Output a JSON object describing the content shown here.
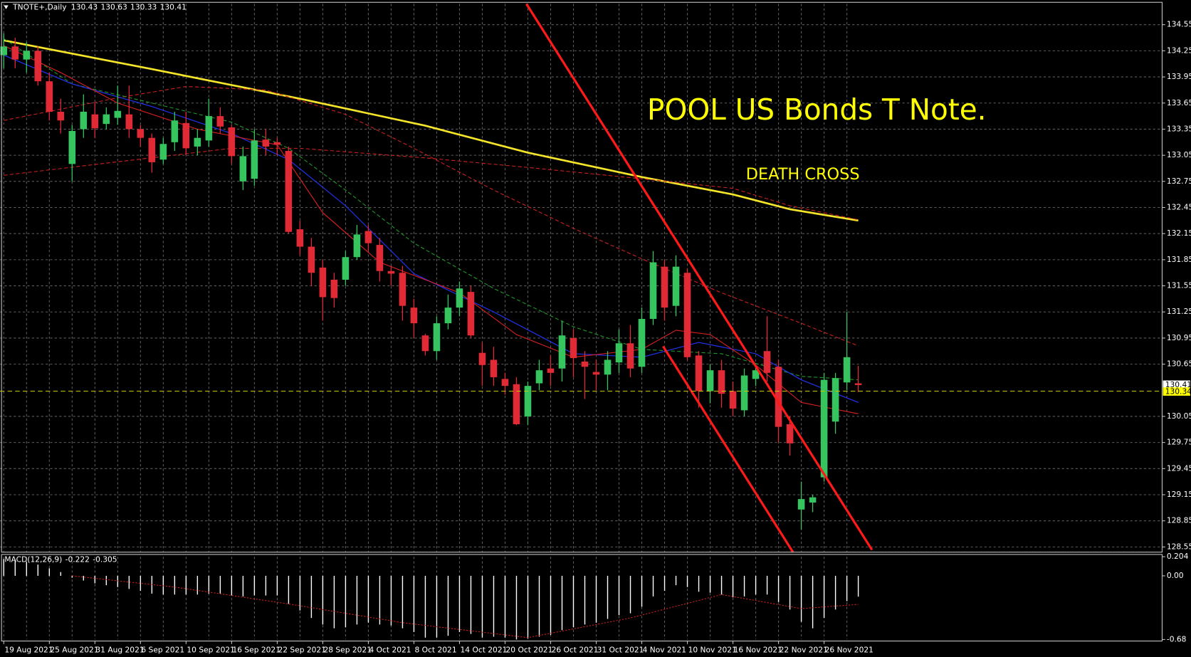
{
  "chart_data": [
    {
      "type": "candlestick",
      "symbol_label": "TNOTE+,Daily",
      "title": "POOL US Bonds T Note.",
      "annotation": "DEATH CROSS",
      "up_color": "#35c45e",
      "down_color": "#e02a36",
      "xlim": [
        -0.33,
        101.67
      ],
      "xticks": [
        {
          "value": 0,
          "label": "19 Aug 2021"
        },
        {
          "value": 4,
          "label": "25 Aug 2021"
        },
        {
          "value": 8,
          "label": "31 Aug 2021"
        },
        {
          "value": 12,
          "label": "6 Sep 2021"
        },
        {
          "value": 16,
          "label": "10 Sep 2021"
        },
        {
          "value": 20,
          "label": "16 Sep 2021"
        },
        {
          "value": 24,
          "label": "22 Sep 2021"
        },
        {
          "value": 28,
          "label": "28 Sep 2021"
        },
        {
          "value": 32,
          "label": "4 Oct 2021"
        },
        {
          "value": 36,
          "label": "8 Oct 2021"
        },
        {
          "value": 40,
          "label": "14 Oct 2021"
        },
        {
          "value": 44,
          "label": "20 Oct 2021"
        },
        {
          "value": 48,
          "label": "26 Oct 2021"
        },
        {
          "value": 52,
          "label": "31 Oct 2021"
        },
        {
          "value": 56,
          "label": "4 Nov 2021"
        },
        {
          "value": 60,
          "label": "10 Nov 2021"
        },
        {
          "value": 64,
          "label": "16 Nov 2021"
        },
        {
          "value": 68,
          "label": "22 Nov 2021"
        },
        {
          "value": 72,
          "label": "26 Nov 2021"
        }
      ],
      "ylim": [
        128.49,
        134.79
      ],
      "yticks": [
        134.55,
        134.25,
        133.95,
        133.65,
        133.35,
        133.05,
        132.75,
        132.45,
        132.15,
        131.85,
        131.55,
        131.25,
        130.95,
        130.65,
        130.05,
        129.75,
        129.45,
        129.15,
        128.85,
        128.55
      ],
      "grid": true,
      "bid_line": 130.34,
      "open": [
        134.2,
        134.3,
        134.15,
        134.25,
        133.9,
        133.55,
        132.95,
        133.35,
        133.52,
        133.41,
        133.48,
        133.52,
        133.35,
        133.25,
        133.0,
        133.2,
        133.42,
        133.15,
        133.22,
        133.5,
        133.37,
        132.75,
        132.78,
        133.23,
        133.2,
        133.1,
        132.2,
        132.0,
        131.76,
        131.62,
        131.62,
        131.88,
        132.18,
        132.02,
        131.72,
        131.7,
        131.3,
        130.98,
        130.8,
        131.12,
        131.3,
        131.48,
        130.78,
        130.7,
        130.48,
        130.42,
        130.05,
        130.43,
        130.6,
        130.6,
        130.95,
        130.68,
        130.56,
        130.53,
        130.67,
        130.89,
        130.62,
        131.17,
        131.77,
        131.32,
        131.7,
        130.75,
        130.34,
        130.58,
        130.34,
        130.12,
        130.48,
        130.8,
        130.62,
        129.96,
        128.98,
        129.06,
        129.35,
        129.99,
        130.44,
        130.43
      ],
      "high": [
        134.45,
        134.4,
        134.35,
        134.3,
        134.0,
        133.7,
        133.4,
        133.75,
        133.65,
        133.6,
        133.85,
        133.85,
        133.4,
        133.3,
        133.25,
        133.55,
        133.55,
        133.35,
        133.7,
        133.6,
        133.4,
        133.15,
        133.35,
        133.35,
        133.25,
        133.15,
        132.3,
        132.1,
        131.85,
        131.7,
        131.95,
        132.25,
        132.25,
        132.1,
        131.78,
        131.78,
        131.4,
        131.0,
        131.2,
        131.45,
        131.6,
        131.55,
        130.9,
        130.85,
        130.55,
        130.5,
        130.45,
        130.7,
        130.75,
        131.15,
        131.05,
        130.8,
        130.7,
        130.8,
        131.05,
        131.1,
        131.3,
        131.95,
        131.85,
        131.9,
        131.75,
        130.8,
        130.65,
        130.7,
        130.45,
        130.6,
        130.65,
        131.2,
        130.7,
        130.05,
        129.3,
        129.15,
        130.55,
        130.55,
        131.25,
        130.63
      ],
      "low": [
        134.05,
        134.05,
        134.0,
        133.85,
        133.45,
        133.3,
        132.75,
        133.25,
        133.25,
        133.35,
        133.4,
        133.25,
        133.15,
        132.85,
        132.95,
        133.1,
        133.05,
        133.05,
        133.15,
        133.3,
        132.95,
        132.65,
        132.7,
        133.05,
        133.05,
        132.15,
        131.9,
        131.55,
        131.15,
        131.3,
        131.55,
        131.85,
        131.95,
        131.6,
        131.55,
        131.15,
        130.95,
        130.75,
        130.7,
        131.05,
        131.2,
        130.95,
        130.4,
        130.4,
        130.3,
        129.95,
        129.95,
        130.35,
        130.4,
        130.45,
        130.5,
        130.25,
        130.35,
        130.35,
        130.55,
        130.5,
        130.55,
        131.1,
        131.15,
        131.2,
        130.7,
        130.15,
        130.2,
        130.15,
        130.05,
        130.05,
        130.4,
        130.45,
        129.75,
        129.6,
        128.75,
        128.95,
        129.3,
        129.85,
        130.35,
        130.33
      ],
      "close": [
        134.3,
        134.15,
        134.25,
        133.9,
        133.55,
        133.45,
        133.33,
        133.55,
        133.36,
        133.52,
        133.56,
        133.35,
        133.25,
        132.97,
        133.18,
        133.45,
        133.13,
        133.25,
        133.5,
        133.38,
        133.04,
        133.04,
        133.22,
        133.15,
        133.17,
        132.17,
        132.0,
        131.7,
        131.42,
        131.41,
        131.88,
        132.14,
        132.04,
        131.72,
        131.69,
        131.32,
        131.12,
        130.8,
        131.12,
        131.3,
        131.52,
        130.98,
        130.64,
        130.5,
        130.4,
        129.96,
        130.4,
        130.58,
        130.55,
        130.98,
        130.72,
        130.62,
        130.53,
        130.7,
        130.89,
        130.6,
        131.17,
        131.82,
        131.3,
        131.77,
        130.73,
        130.34,
        130.58,
        130.31,
        130.14,
        130.52,
        130.58,
        130.55,
        129.93,
        129.74,
        129.1,
        129.12,
        130.47,
        130.49,
        130.73,
        130.41
      ],
      "overlays": [
        {
          "color": "#f5e52a",
          "width": 2.5,
          "dash": false,
          "x": [
            0,
            13,
            26,
            37,
            46,
            56,
            64,
            69,
            75
          ],
          "values": [
            134.37,
            134.04,
            133.7,
            133.39,
            133.08,
            132.8,
            132.6,
            132.43,
            132.3
          ]
        },
        {
          "color": "#d02020",
          "width": 1,
          "dash": true,
          "x": [
            0,
            20,
            26,
            37,
            46,
            56,
            64,
            69,
            75
          ],
          "values": [
            132.82,
            133.13,
            133.13,
            133.02,
            132.91,
            132.78,
            132.67,
            132.47,
            132.31
          ]
        },
        {
          "color": "#d02020",
          "width": 1,
          "dash": true,
          "x": [
            0,
            10,
            16,
            23,
            30,
            36,
            43,
            50,
            56,
            63,
            70,
            75
          ],
          "values": [
            133.45,
            133.71,
            133.84,
            133.8,
            133.52,
            133.13,
            132.65,
            132.21,
            131.86,
            131.47,
            131.12,
            130.86
          ]
        },
        {
          "color": "#1f9a2a",
          "width": 1,
          "dash": true,
          "x": [
            0,
            6,
            13,
            20,
            25,
            30,
            36,
            43,
            50,
            56,
            63,
            70,
            75
          ],
          "values": [
            134.39,
            133.87,
            133.65,
            133.43,
            133.13,
            132.65,
            132.04,
            131.52,
            131.08,
            130.82,
            130.77,
            130.51,
            130.47
          ]
        },
        {
          "color": "#2030e0",
          "width": 1.2,
          "dash": false,
          "x": [
            0,
            6,
            13,
            20,
            25,
            30,
            36,
            43,
            50,
            56,
            61,
            66,
            70,
            75
          ],
          "values": [
            134.2,
            133.87,
            133.61,
            133.3,
            133.0,
            132.47,
            131.69,
            131.25,
            130.77,
            130.73,
            130.9,
            130.77,
            130.47,
            130.21
          ]
        },
        {
          "color": "#e02020",
          "width": 1,
          "dash": false,
          "x": [
            0,
            5,
            10,
            17,
            24,
            28,
            33,
            40,
            45,
            50,
            56,
            59,
            62,
            66,
            70,
            75
          ],
          "values": [
            134.31,
            134.0,
            133.65,
            133.35,
            133.17,
            132.39,
            131.82,
            131.47,
            130.99,
            130.73,
            130.82,
            131.04,
            130.99,
            130.64,
            130.21,
            130.08
          ]
        }
      ]
    },
    {
      "type": "macd",
      "title": "MACD(12,26,9)",
      "color": "#ffffff",
      "xlim": [
        -0.33,
        101.67
      ],
      "ylim": [
        -0.68,
        0.204
      ],
      "yticks": [
        0.204,
        {
          "value": 0,
          "label": "0.00"
        },
        -0.68
      ],
      "values": [
        0.18,
        0.17,
        0.15,
        0.12,
        0.08,
        0.04,
        -0.02,
        -0.05,
        -0.08,
        -0.1,
        -0.12,
        -0.14,
        -0.16,
        -0.19,
        -0.2,
        -0.2,
        -0.2,
        -0.2,
        -0.19,
        -0.19,
        -0.21,
        -0.22,
        -0.21,
        -0.21,
        -0.21,
        -0.3,
        -0.37,
        -0.45,
        -0.52,
        -0.56,
        -0.55,
        -0.52,
        -0.5,
        -0.52,
        -0.53,
        -0.56,
        -0.6,
        -0.66,
        -0.66,
        -0.64,
        -0.6,
        -0.62,
        -0.66,
        -0.65,
        -0.66,
        -0.68,
        -0.67,
        -0.65,
        -0.63,
        -0.58,
        -0.55,
        -0.52,
        -0.5,
        -0.46,
        -0.42,
        -0.4,
        -0.33,
        -0.22,
        -0.16,
        -0.1,
        -0.12,
        -0.17,
        -0.18,
        -0.2,
        -0.23,
        -0.22,
        -0.2,
        -0.2,
        -0.28,
        -0.36,
        -0.49,
        -0.56,
        -0.45,
        -0.36,
        -0.27,
        -0.222
      ],
      "signal": {
        "color": "#d02020",
        "x": [
          6,
          15,
          25,
          35,
          46,
          55,
          63,
          70,
          75
        ],
        "values": [
          0,
          -0.12,
          -0.3,
          -0.5,
          -0.66,
          -0.45,
          -0.2,
          -0.35,
          -0.305
        ]
      }
    }
  ]
}
